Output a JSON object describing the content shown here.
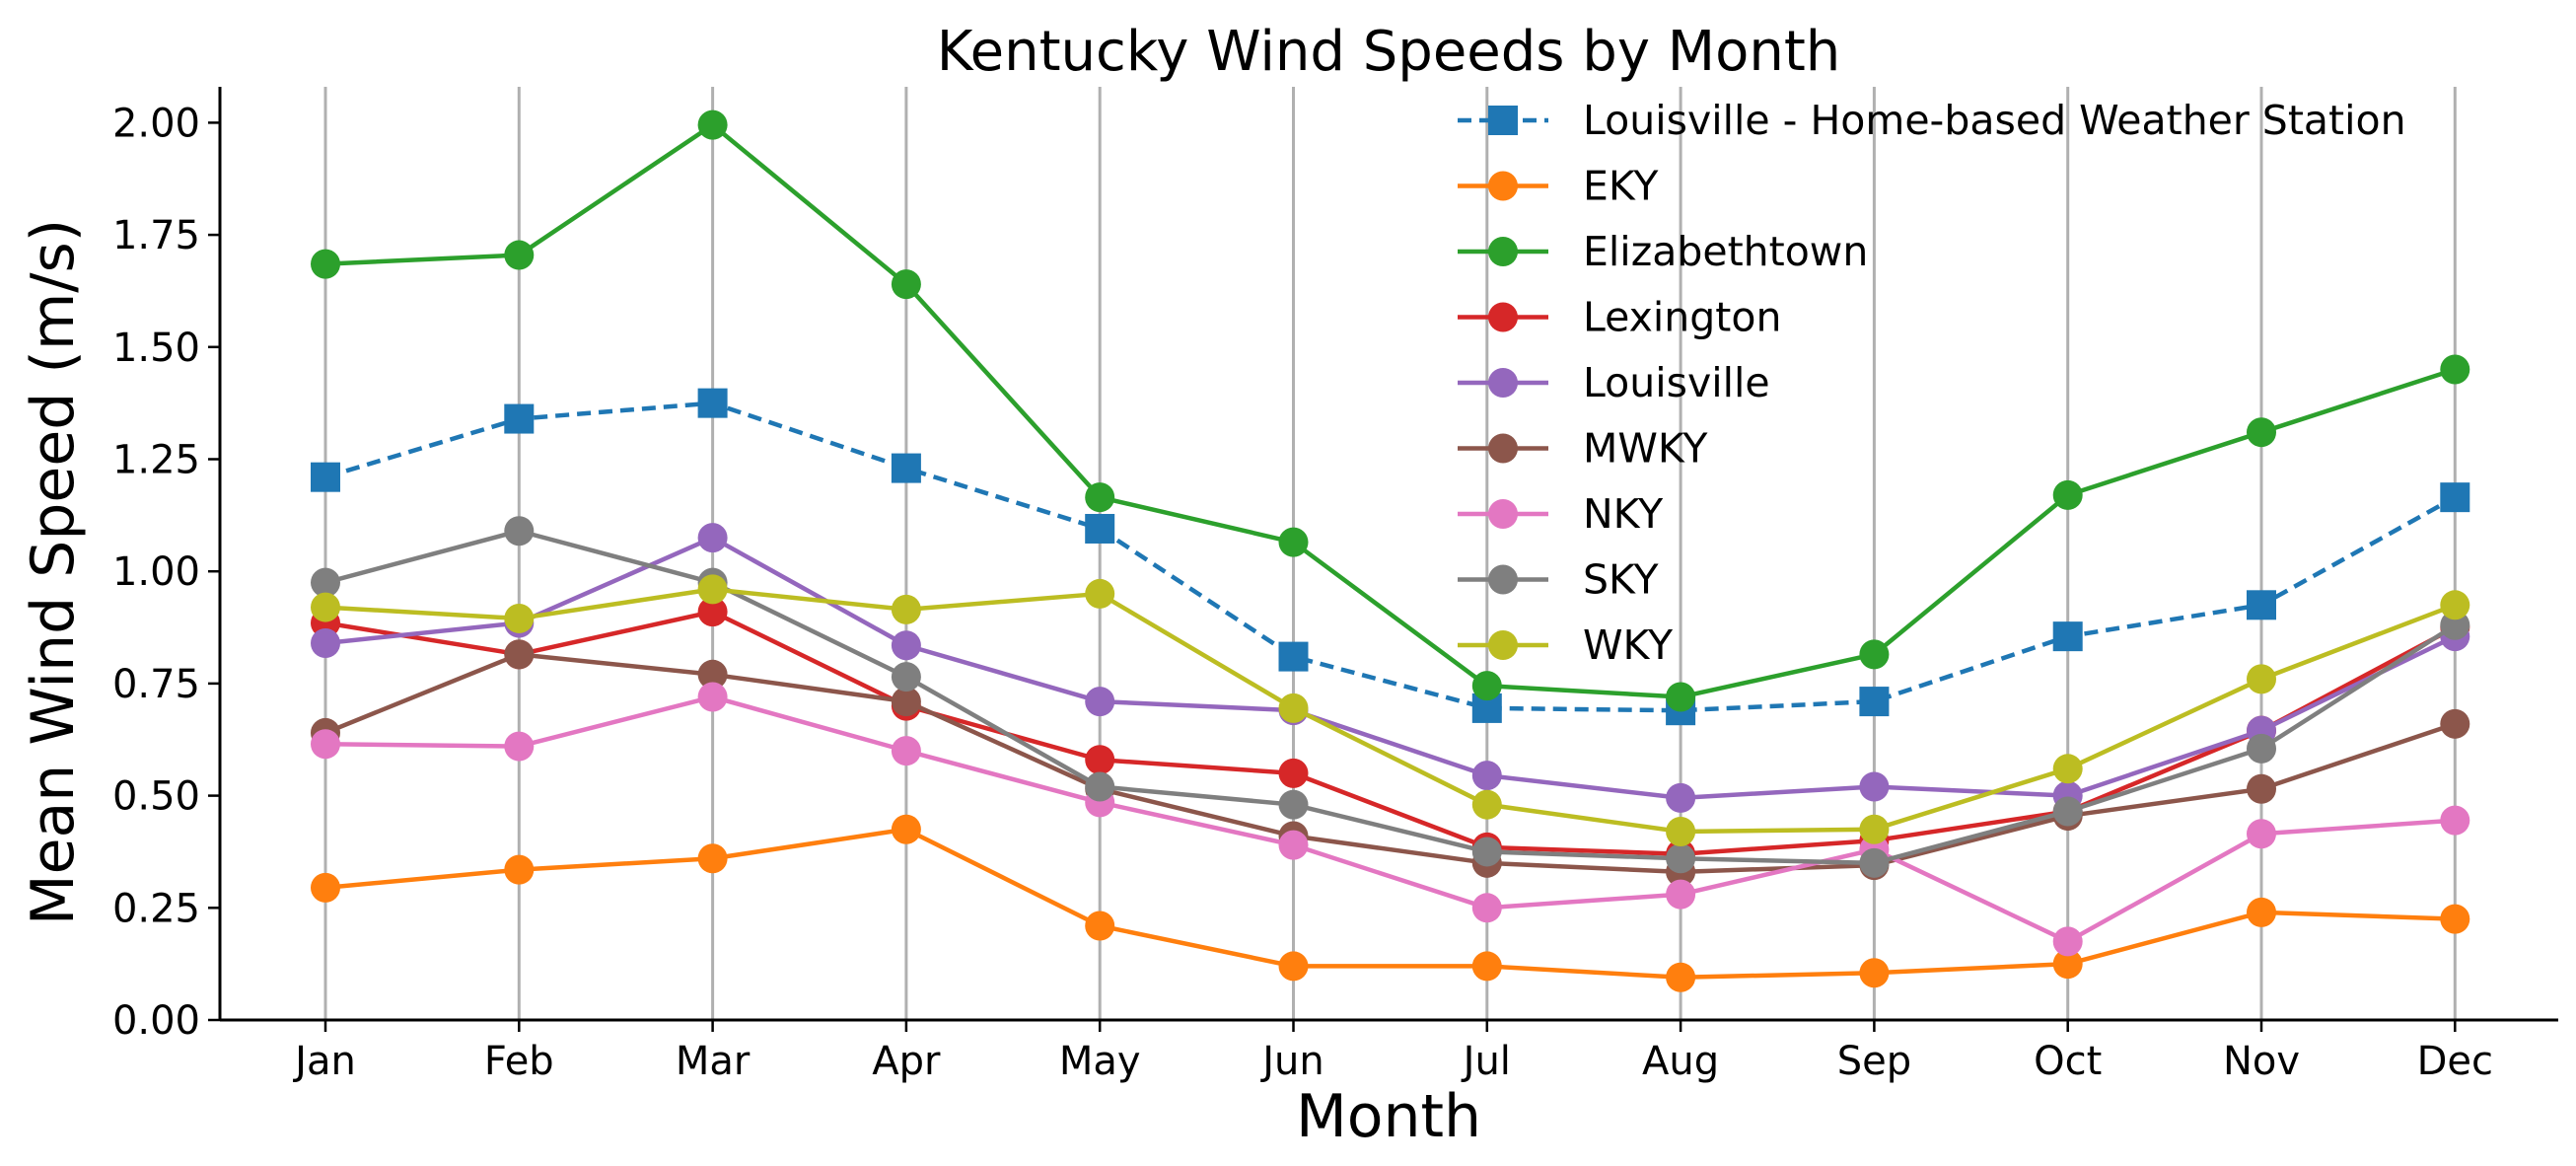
{
  "chart_data": {
    "type": "line",
    "title": "Kentucky Wind Speeds by Month",
    "xlabel": "Month",
    "ylabel": "Mean Wind Speed (m/s)",
    "categories": [
      "Jan",
      "Feb",
      "Mar",
      "Apr",
      "May",
      "Jun",
      "Jul",
      "Aug",
      "Sep",
      "Oct",
      "Nov",
      "Dec"
    ],
    "ylim": [
      0,
      2.08
    ],
    "yticks": [
      "0.00",
      "0.25",
      "0.50",
      "0.75",
      "1.00",
      "1.25",
      "1.50",
      "1.75",
      "2.00"
    ],
    "grid": "vertical",
    "legend_position": "top-right",
    "series": [
      {
        "name": "Louisville - Home-based Weather Station",
        "color": "#1f77b4",
        "marker": "square",
        "linestyle": "dashed",
        "values": [
          1.21,
          1.34,
          1.375,
          1.23,
          1.095,
          0.81,
          0.695,
          0.69,
          0.71,
          0.855,
          0.925,
          1.165
        ]
      },
      {
        "name": "EKY",
        "color": "#ff7f0e",
        "marker": "circle",
        "linestyle": "solid",
        "values": [
          0.295,
          0.335,
          0.36,
          0.425,
          0.21,
          0.12,
          0.12,
          0.095,
          0.105,
          0.125,
          0.24,
          0.225
        ]
      },
      {
        "name": "Elizabethtown",
        "color": "#2ca02c",
        "marker": "circle",
        "linestyle": "solid",
        "values": [
          1.685,
          1.705,
          1.995,
          1.64,
          1.165,
          1.065,
          0.745,
          0.72,
          0.815,
          1.17,
          1.31,
          1.45
        ]
      },
      {
        "name": "Lexington",
        "color": "#d62728",
        "marker": "circle",
        "linestyle": "solid",
        "values": [
          0.885,
          0.815,
          0.91,
          0.7,
          0.58,
          0.55,
          0.385,
          0.37,
          0.4,
          0.465,
          0.645,
          0.875
        ]
      },
      {
        "name": "Louisville",
        "color": "#9467bd",
        "marker": "circle",
        "linestyle": "solid",
        "values": [
          0.84,
          0.885,
          1.075,
          0.835,
          0.71,
          0.69,
          0.545,
          0.495,
          0.52,
          0.5,
          0.645,
          0.855
        ]
      },
      {
        "name": "MWKY",
        "color": "#8c564b",
        "marker": "circle",
        "linestyle": "solid",
        "values": [
          0.64,
          0.815,
          0.77,
          0.71,
          0.515,
          0.41,
          0.35,
          0.33,
          0.345,
          0.455,
          0.515,
          0.66
        ]
      },
      {
        "name": "NKY",
        "color": "#e377c2",
        "marker": "circle",
        "linestyle": "solid",
        "values": [
          0.615,
          0.61,
          0.72,
          0.6,
          0.485,
          0.39,
          0.25,
          0.28,
          0.38,
          0.175,
          0.415,
          0.445
        ]
      },
      {
        "name": "SKY",
        "color": "#7f7f7f",
        "marker": "circle",
        "linestyle": "solid",
        "values": [
          0.975,
          1.09,
          0.975,
          0.765,
          0.52,
          0.48,
          0.375,
          0.36,
          0.35,
          0.465,
          0.605,
          0.88
        ]
      },
      {
        "name": "WKY",
        "color": "#bcbd22",
        "marker": "circle",
        "linestyle": "solid",
        "values": [
          0.92,
          0.895,
          0.96,
          0.915,
          0.95,
          0.695,
          0.48,
          0.42,
          0.425,
          0.56,
          0.76,
          0.925
        ]
      }
    ]
  }
}
